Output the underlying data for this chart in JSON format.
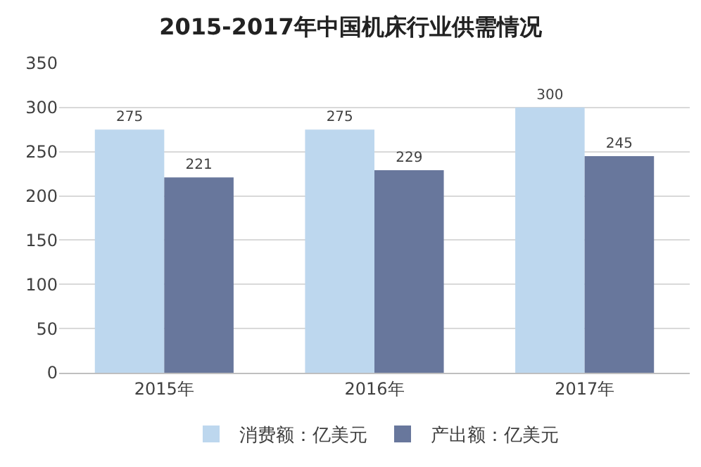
{
  "chart_data": {
    "type": "bar",
    "title": "2015-2017年中国机床行业供需情况",
    "categories": [
      "2015年",
      "2016年",
      "2017年"
    ],
    "series": [
      {
        "name": "消费额：亿美元",
        "color": "#bdd7ee",
        "values": [
          275,
          275,
          300
        ]
      },
      {
        "name": "产出额：亿美元",
        "color": "#68779c",
        "values": [
          221,
          229,
          245
        ]
      }
    ],
    "ylim": [
      0,
      350
    ],
    "yticks": [
      0,
      50,
      100,
      150,
      200,
      250,
      300,
      350
    ],
    "grid": "y",
    "legend": "bottom",
    "data_labels": true
  }
}
